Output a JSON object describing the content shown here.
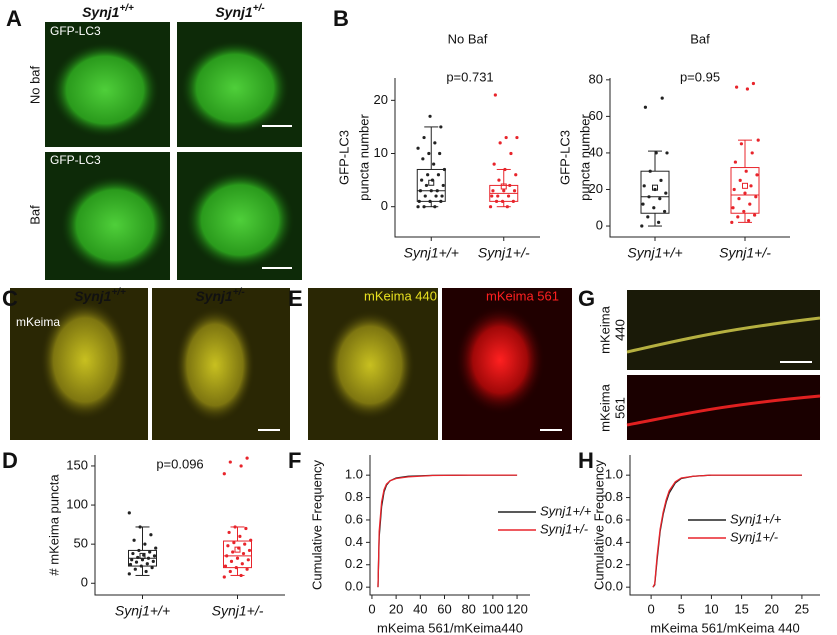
{
  "panel_labels": [
    "A",
    "B",
    "C",
    "D",
    "E",
    "F",
    "G",
    "H"
  ],
  "images": {
    "a_headers": [
      {
        "gene": "Synj1",
        "genotype": "+/+"
      },
      {
        "gene": "Synj1",
        "genotype": "+/-"
      }
    ],
    "a_rows": [
      "No baf",
      "Baf"
    ],
    "a_stain": [
      "GFP-LC3",
      "GFP-LC3"
    ],
    "c_headers": [
      {
        "gene": "Synj1",
        "genotype": "+/+"
      },
      {
        "gene": "Synj1",
        "genotype": "+/-"
      }
    ],
    "c_stain": "mKeima",
    "e_channels": [
      "mKeima 440",
      "mKeima 561"
    ],
    "g_rows": [
      [
        "mKeima",
        "440"
      ],
      [
        "mKeima",
        "561"
      ]
    ]
  },
  "chart_data": [
    {
      "type": "box",
      "title": "No Baf",
      "annotation": "p=0.731",
      "ylabel": [
        "GFP-LC3",
        "puncta number"
      ],
      "categories": [
        "Synj1+/+",
        "Synj1+/-"
      ],
      "ylim": [
        -5.7,
        24.2
      ],
      "yticks": [
        0,
        10,
        20
      ],
      "groups": [
        {
          "color": "#222222",
          "whisker_low": 0,
          "q1": 1,
          "median": 3,
          "q3": 7,
          "whisker_high": 15,
          "mean": 4.5,
          "points": [
            0,
            0,
            0,
            1,
            1,
            1,
            2,
            2,
            2,
            3,
            3,
            3,
            4,
            4,
            5,
            5,
            6,
            6,
            7,
            8,
            9,
            10,
            10,
            11,
            12,
            13,
            15,
            17
          ]
        },
        {
          "color": "#e8242b",
          "whisker_low": 0,
          "q1": 1,
          "median": 2.5,
          "q3": 4,
          "whisker_high": 7,
          "mean": 3.8,
          "points": [
            0,
            0,
            1,
            1,
            1,
            2,
            2,
            2,
            3,
            3,
            3,
            4,
            5,
            6,
            7,
            8,
            10,
            12,
            13,
            13,
            21
          ]
        }
      ]
    },
    {
      "type": "box",
      "title": "Baf",
      "annotation": "p=0.95",
      "ylabel": [
        "GFP-LC3",
        "puncta number"
      ],
      "categories": [
        "Synj1+/+",
        "Synj1+/-"
      ],
      "ylim": [
        -6,
        81
      ],
      "yticks": [
        0,
        20,
        40,
        60,
        80
      ],
      "groups": [
        {
          "color": "#222222",
          "whisker_low": 0,
          "q1": 7,
          "median": 16,
          "q3": 30,
          "whisker_high": 41,
          "mean": 21,
          "points": [
            0,
            2,
            5,
            8,
            10,
            12,
            15,
            16,
            18,
            20,
            22,
            25,
            30,
            40,
            40,
            65,
            70
          ]
        },
        {
          "color": "#e8242b",
          "whisker_low": 2,
          "q1": 7,
          "median": 17,
          "q3": 32,
          "whisker_high": 47,
          "mean": 22,
          "points": [
            2,
            3,
            5,
            6,
            8,
            10,
            12,
            15,
            16,
            18,
            20,
            22,
            25,
            28,
            30,
            35,
            40,
            45,
            47,
            75,
            76,
            78
          ]
        }
      ]
    },
    {
      "type": "box",
      "annotation": "p=0.096",
      "ylabel": "# mKeima puncta",
      "categories": [
        "Synj1+/+",
        "Synj1+/-"
      ],
      "ylim": [
        -15,
        164
      ],
      "yticks": [
        0,
        50,
        100,
        150
      ],
      "groups": [
        {
          "color": "#222222",
          "whisker_low": 10,
          "q1": 22,
          "median": 32,
          "q3": 42,
          "whisker_high": 72,
          "mean": 35,
          "points": [
            12,
            15,
            18,
            20,
            22,
            24,
            25,
            27,
            28,
            30,
            30,
            32,
            33,
            35,
            36,
            38,
            40,
            42,
            45,
            50,
            55,
            62,
            72,
            90
          ]
        },
        {
          "color": "#e8242b",
          "whisker_low": 10,
          "q1": 20,
          "median": 35,
          "q3": 54,
          "whisker_high": 72,
          "mean": 43,
          "points": [
            8,
            10,
            15,
            18,
            20,
            22,
            25,
            28,
            30,
            32,
            35,
            38,
            40,
            42,
            45,
            48,
            50,
            52,
            55,
            60,
            65,
            70,
            72,
            140,
            150,
            155,
            160
          ]
        }
      ]
    },
    {
      "type": "line",
      "xlabel": "mKeima 561/mKeima440",
      "ylabel": "Cumulative Frequency",
      "xlim": [
        -1.6,
        130.7
      ],
      "xticks": [
        0,
        20,
        40,
        60,
        80,
        100,
        120
      ],
      "ylim": [
        -0.07,
        1.18
      ],
      "yticks": [
        {
          "value": 0,
          "label": "0.0"
        },
        {
          "value": 0.2,
          "label": "0.2"
        },
        {
          "value": 0.4,
          "label": "0.4"
        },
        {
          "value": 0.6,
          "label": "0.6"
        },
        {
          "value": 0.8,
          "label": "0.8"
        },
        {
          "value": 1,
          "label": "1.0"
        }
      ],
      "x": [
        5,
        6,
        8,
        10,
        12,
        15,
        20,
        30,
        50,
        80,
        120
      ],
      "series": [
        {
          "name": "Synj1+/+",
          "color": "#222222",
          "values": [
            0,
            0.45,
            0.72,
            0.85,
            0.91,
            0.95,
            0.975,
            0.99,
            0.998,
            1,
            1
          ]
        },
        {
          "name": "Synj1+/-",
          "color": "#e8242b",
          "values": [
            0,
            0.5,
            0.76,
            0.87,
            0.92,
            0.95,
            0.97,
            0.985,
            0.997,
            1,
            1
          ]
        }
      ]
    },
    {
      "type": "line",
      "xlabel": "mKeima 561/mKeima 440",
      "ylabel": "Cumulative Frequency",
      "xlim": [
        -3.5,
        28
      ],
      "xticks": [
        0,
        5,
        10,
        15,
        20,
        25
      ],
      "ylim": [
        -0.07,
        1.18
      ],
      "yticks": [
        {
          "value": 0,
          "label": "0.0"
        },
        {
          "value": 0.2,
          "label": "0.2"
        },
        {
          "value": 0.4,
          "label": "0.4"
        },
        {
          "value": 0.6,
          "label": "0.6"
        },
        {
          "value": 0.8,
          "label": "0.8"
        },
        {
          "value": 1,
          "label": "1.0"
        }
      ],
      "x": [
        0.3,
        0.6,
        1,
        1.5,
        2,
        2.5,
        3,
        4,
        5,
        7,
        10,
        25
      ],
      "series": [
        {
          "name": "Synj1+/+",
          "color": "#222222",
          "values": [
            0,
            0.02,
            0.25,
            0.5,
            0.65,
            0.76,
            0.84,
            0.93,
            0.97,
            0.99,
            1,
            1
          ]
        },
        {
          "name": "Synj1+/-",
          "color": "#e8242b",
          "values": [
            0,
            0.03,
            0.28,
            0.52,
            0.67,
            0.78,
            0.86,
            0.94,
            0.975,
            0.99,
            1,
            1
          ]
        }
      ]
    }
  ]
}
